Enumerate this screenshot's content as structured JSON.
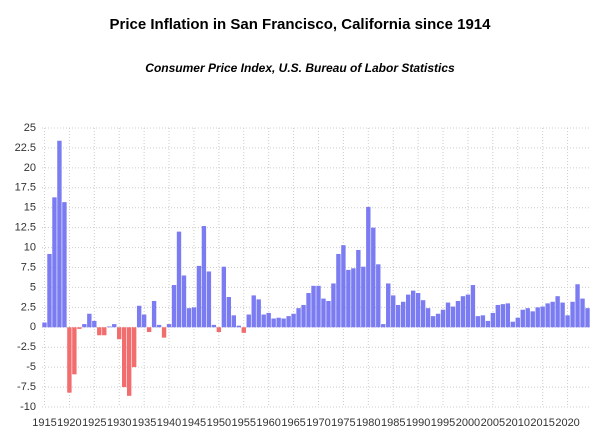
{
  "chart_data": {
    "type": "bar",
    "title": "Price Inflation in San Francisco, California since 1914",
    "subtitle": "Consumer Price Index, U.S. Bureau of Labor Statistics",
    "categories": [
      "1915",
      null,
      null,
      null,
      null,
      "1920",
      null,
      null,
      null,
      null,
      "1925",
      null,
      null,
      null,
      null,
      "1930",
      null,
      null,
      null,
      null,
      "1935",
      null,
      null,
      null,
      null,
      "1940",
      null,
      null,
      null,
      null,
      "1945",
      null,
      null,
      null,
      null,
      "1950",
      null,
      null,
      null,
      null,
      "1955",
      null,
      null,
      null,
      null,
      "1960",
      null,
      null,
      null,
      null,
      "1965",
      null,
      null,
      null,
      null,
      "1970",
      null,
      null,
      null,
      null,
      "1975",
      null,
      null,
      null,
      null,
      "1980",
      null,
      null,
      null,
      null,
      "1985",
      null,
      null,
      null,
      null,
      "1990",
      null,
      null,
      null,
      null,
      "1995",
      null,
      null,
      null,
      null,
      "2000",
      null,
      null,
      null,
      null,
      "2005",
      null,
      null,
      null,
      null,
      "2010",
      null,
      null,
      null,
      null,
      "2015",
      null,
      null,
      null,
      null,
      "2020",
      null,
      null,
      null,
      null
    ],
    "values": [
      0.6,
      9.2,
      16.3,
      23.4,
      15.7,
      -8.2,
      -5.9,
      -0.2,
      0.4,
      1.7,
      0.8,
      -1.0,
      -1.0,
      0.1,
      0.4,
      -1.5,
      -7.5,
      -8.6,
      -5.0,
      2.7,
      1.6,
      -0.6,
      3.3,
      0.3,
      -1.3,
      0.4,
      5.3,
      12.0,
      6.5,
      2.4,
      2.5,
      7.7,
      12.7,
      7.0,
      0.3,
      -0.6,
      7.6,
      3.8,
      1.5,
      0.2,
      -0.7,
      1.6,
      4.0,
      3.5,
      1.6,
      1.8,
      1.1,
      1.2,
      1.1,
      1.4,
      1.7,
      2.4,
      2.8,
      4.3,
      5.2,
      5.2,
      3.6,
      3.3,
      5.5,
      9.2,
      10.3,
      7.2,
      7.4,
      9.7,
      7.6,
      15.1,
      12.5,
      7.9,
      0.4,
      5.5,
      4.0,
      2.8,
      3.2,
      4.1,
      4.6,
      4.3,
      3.4,
      2.4,
      1.4,
      1.7,
      2.2,
      3.1,
      2.6,
      3.3,
      3.9,
      4.1,
      5.3,
      1.4,
      1.5,
      0.8,
      1.8,
      2.8,
      2.9,
      3.0,
      0.7,
      1.2,
      2.2,
      2.4,
      2.0,
      2.5,
      2.6,
      3.0,
      3.2,
      3.9,
      3.1,
      1.5,
      3.2,
      5.4,
      3.6,
      2.4
    ],
    "color": "#7b7bf2",
    "negative_color": "#f26d6d",
    "ylim": [
      -10,
      25
    ],
    "yticks": [
      25,
      22.5,
      20,
      17.5,
      15,
      12.5,
      10,
      7.5,
      5,
      2.5,
      0,
      -2.5,
      -5,
      -7.5,
      -10
    ],
    "grid": true
  }
}
